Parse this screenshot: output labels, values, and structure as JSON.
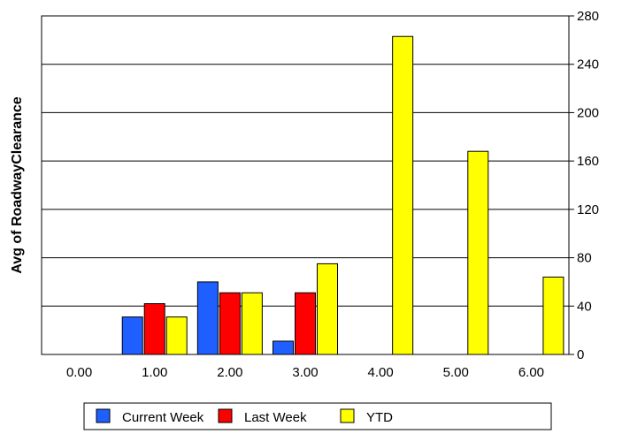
{
  "chart_data": {
    "type": "bar",
    "ylabel": "Avg of RoadwayClearance",
    "xlabel": "",
    "y_axis_side": "right",
    "ylim": [
      0,
      280
    ],
    "yticks": [
      0,
      40,
      80,
      120,
      160,
      200,
      240,
      280
    ],
    "categories": [
      "0.00",
      "1.00",
      "2.00",
      "3.00",
      "4.00",
      "5.00",
      "6.00"
    ],
    "grid": "horizontal",
    "legend_placement": "bottom",
    "series": [
      {
        "name": "Current Week",
        "color": "#1F5EFF",
        "values": [
          0,
          31,
          60,
          11,
          0,
          0,
          0
        ]
      },
      {
        "name": "Last Week",
        "color": "#FF0000",
        "values": [
          0,
          42,
          51,
          51,
          0,
          0,
          0
        ]
      },
      {
        "name": "YTD",
        "color": "#FFFF00",
        "values": [
          0,
          31,
          51,
          75,
          263,
          168,
          64
        ]
      }
    ]
  }
}
